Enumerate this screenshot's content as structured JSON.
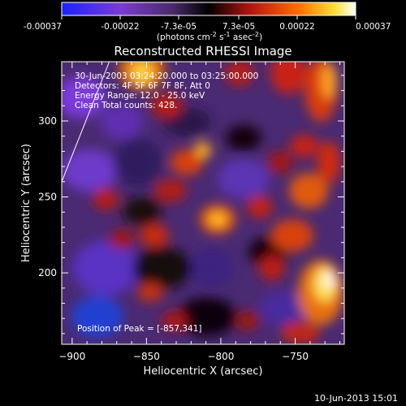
{
  "colorbar": {
    "tick_labels": [
      "-0.00037",
      "-0.00022",
      "-7.3e-05",
      "7.3e-05",
      "0.00022",
      "0.00037"
    ],
    "range": [
      -0.00037,
      0.00037
    ],
    "units_prefix": "(photons cm",
    "units_exp1": "-2",
    "units_mid": " s",
    "units_exp2": "-1",
    "units_mid2": " asec",
    "units_exp3": "-2",
    "units_suffix": ")"
  },
  "chart_data": {
    "type": "heatmap",
    "title": "Reconstructed RHESSI Image",
    "xlabel": "Heliocentric X (arcsec)",
    "ylabel": "Heliocentric Y (arcsec)",
    "xlim": [
      -907,
      -717
    ],
    "ylim": [
      153,
      339
    ],
    "x_ticks": [
      -900,
      -850,
      -800,
      -750
    ],
    "y_ticks": [
      200,
      250,
      300
    ],
    "x_tick_labels": [
      "−900",
      "−850",
      "−800",
      "−750"
    ],
    "y_tick_labels": [
      "200",
      "250",
      "300"
    ],
    "color_scale": "blue-purple-black-red-yellow-white",
    "peak_position": [
      -857,
      341
    ],
    "limb_line": [
      [
        -907,
        260
      ],
      [
        -875,
        339
      ]
    ],
    "annotations": [
      "30-Jun-2003 03:24:20.000 to 03:25:00.000",
      "Detectors: 4F 5F 6F 7F 8F, Att 0",
      "Energy Range: 12.0 - 25.0 keV",
      "Clean    Total counts: 428.",
      "Position of Peak = [-857,341]"
    ]
  },
  "footer_date": "10-Jun-2013 15:01"
}
